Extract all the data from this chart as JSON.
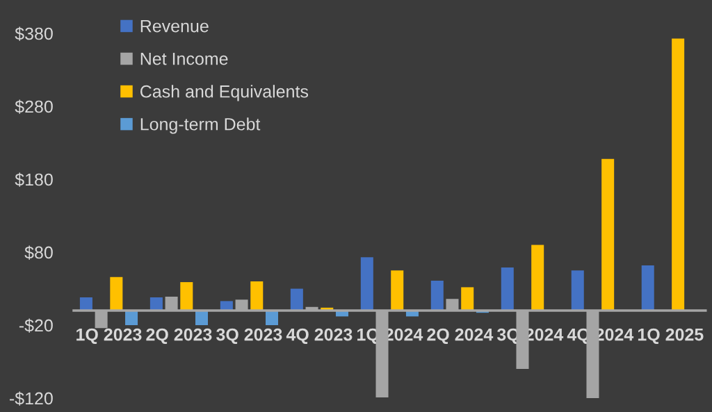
{
  "chart_data": {
    "type": "bar",
    "categories": [
      "1Q 2023",
      "2Q 2023",
      "3Q 2023",
      "4Q 2023",
      "1Q 2024",
      "2Q 2024",
      "3Q 2024",
      "4Q 2024",
      "1Q 2025"
    ],
    "series": [
      {
        "name": "Revenue",
        "color": "#4472c4",
        "values": [
          18,
          18,
          13,
          30,
          73,
          41,
          59,
          55,
          62
        ]
      },
      {
        "name": "Net Income",
        "color": "#a5a5a5",
        "values": [
          -24,
          19,
          15,
          5,
          -119,
          16,
          -80,
          -120,
          null
        ]
      },
      {
        "name": "Cash and Equivalents",
        "color": "#ffc000",
        "values": [
          46,
          39,
          40,
          4,
          55,
          32,
          90,
          208,
          373
        ]
      },
      {
        "name": "Long-term Debt",
        "color": "#5b9bd5",
        "values": [
          -20,
          -20,
          -20,
          -8,
          -8,
          -3,
          null,
          null,
          null
        ]
      }
    ],
    "ylim": [
      -120,
      380
    ],
    "yticks": [
      {
        "value": -120,
        "label": "-$120"
      },
      {
        "value": -20,
        "label": "-$20"
      },
      {
        "value": 80,
        "label": "$80"
      },
      {
        "value": 180,
        "label": "$180"
      },
      {
        "value": 280,
        "label": "$280"
      },
      {
        "value": 380,
        "label": "$380"
      }
    ],
    "grid": false,
    "legend": "top left"
  }
}
